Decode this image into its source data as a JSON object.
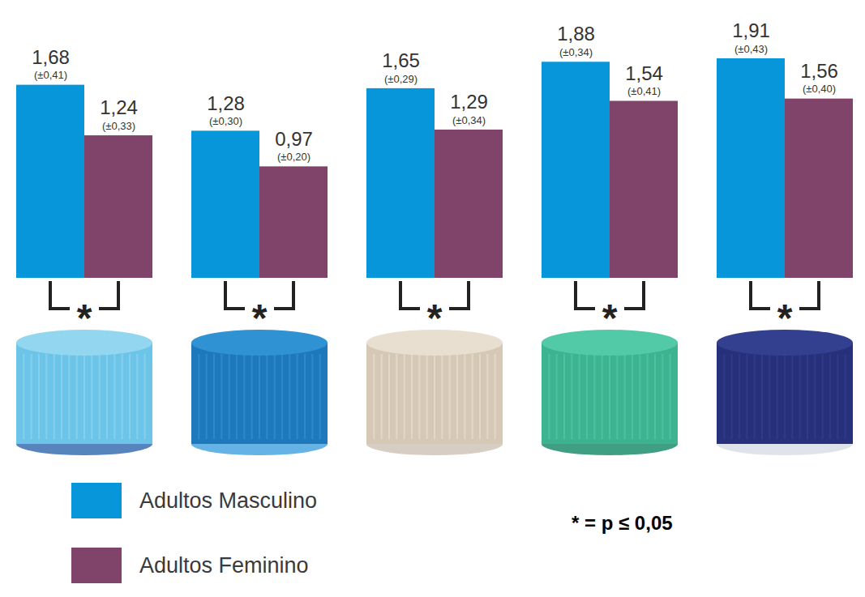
{
  "chart_data": {
    "type": "bar",
    "categories": [
      null,
      null,
      null,
      null,
      null
    ],
    "series": [
      {
        "name": "Adultos Masculino",
        "color": "#0896da",
        "values": [
          1.68,
          1.28,
          1.65,
          1.88,
          1.91
        ],
        "value_labels": [
          "1,68",
          "1,28",
          "1,65",
          "1,88",
          "1,91"
        ],
        "errors": [
          0.41,
          0.3,
          0.29,
          0.34,
          0.43
        ],
        "error_labels": [
          "(±0,41)",
          "(±0,30)",
          "(±0,29)",
          "(±0,34)",
          "(±0,43)"
        ]
      },
      {
        "name": "Adultos Feminino",
        "color": "#80436a",
        "values": [
          1.24,
          0.97,
          1.29,
          1.54,
          1.56
        ],
        "value_labels": [
          "1,24",
          "0,97",
          "1,29",
          "1,54",
          "1,56"
        ],
        "errors": [
          0.33,
          0.2,
          0.34,
          0.41,
          0.4
        ],
        "error_labels": [
          "(±0,33)",
          "(±0,20)",
          "(±0,34)",
          "(±0,41)",
          "(±0,40)"
        ]
      }
    ],
    "significance": [
      "*",
      "*",
      "*",
      "*",
      "*"
    ],
    "annotations": [
      "* = p ≤ 0,05"
    ],
    "data_labels": true,
    "tick_labels": false,
    "legend": "bottom-left"
  }
}
